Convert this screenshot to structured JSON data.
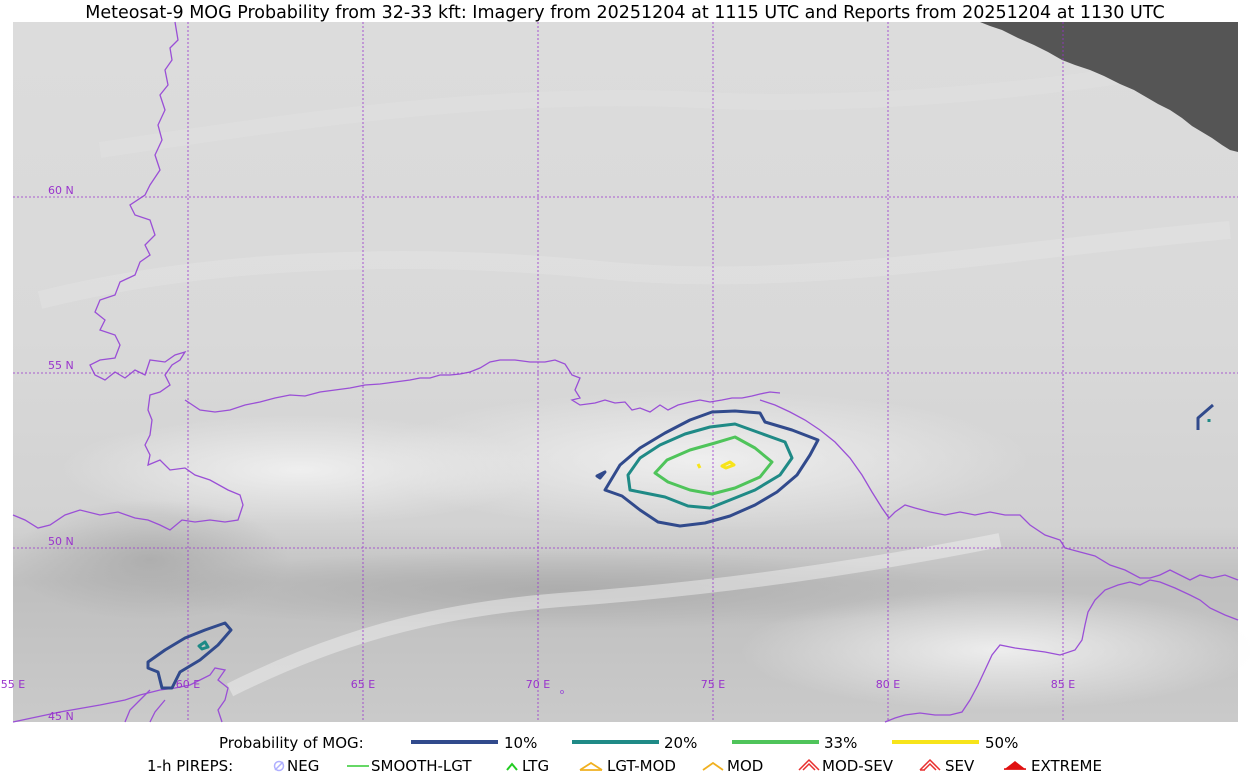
{
  "title": "Meteosat-9 MOG Probability from 32-33 kft: Imagery from 20251204 at 1115 UTC and Reports from 20251204 at 1130 UTC",
  "map": {
    "lat_labels": [
      "60 N",
      "55 N",
      "50 N",
      "45 N"
    ],
    "lon_labels": [
      "55 E",
      "60 E",
      "65 E",
      "70 E",
      "75 E",
      "80 E",
      "85 E"
    ],
    "colors": {
      "gridline": "#9933cc",
      "border": "#9a4fd6",
      "no_data": "#555555",
      "p10": "#314a8c",
      "p20": "#1f8a86",
      "p33": "#4fc45a",
      "p50": "#f7e41a"
    }
  },
  "legend": {
    "probability": {
      "label": "Probability of MOG:",
      "items": [
        {
          "label": "10%",
          "color": "#314a8c"
        },
        {
          "label": "20%",
          "color": "#1f8a86"
        },
        {
          "label": "33%",
          "color": "#4fc45a"
        },
        {
          "label": "50%",
          "color": "#f7e41a"
        }
      ]
    },
    "pireps": {
      "label": "1-h PIREPS:",
      "items": [
        {
          "label": "NEG",
          "icon": "neg-icon",
          "color": "#b0b0ff"
        },
        {
          "label": "SMOOTH-LGT",
          "icon": "smooth-light-icon",
          "color": "#33cc33"
        },
        {
          "label": "LTG",
          "icon": "light-turbulence-icon",
          "color": "#22cc22"
        },
        {
          "label": "LGT-MOD",
          "icon": "light-moderate-icon",
          "color": "#f0b020"
        },
        {
          "label": "MOD",
          "icon": "moderate-icon",
          "color": "#f0b020"
        },
        {
          "label": "MOD-SEV",
          "icon": "moderate-severe-icon",
          "color": "#e83030"
        },
        {
          "label": "SEV",
          "icon": "severe-icon",
          "color": "#e83030"
        },
        {
          "label": "EXTREME",
          "icon": "extreme-icon",
          "color": "#e01010"
        }
      ]
    }
  }
}
